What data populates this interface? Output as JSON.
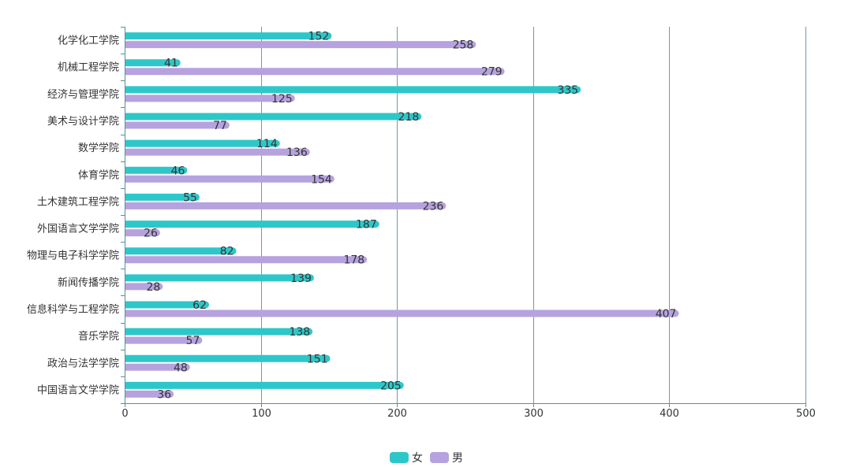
{
  "chart_data": {
    "type": "bar",
    "orientation": "horizontal",
    "categories": [
      "化学化工学院",
      "机械工程学院",
      "经济与管理学院",
      "美术与设计学院",
      "数学学院",
      "体育学院",
      "土木建筑工程学院",
      "外国语言文学学院",
      "物理与电子科学学院",
      "新闻传播学院",
      "信息科学与工程学院",
      "音乐学院",
      "政治与法学学院",
      "中国语言文学学院"
    ],
    "series": [
      {
        "name": "女",
        "values": [
          152,
          41,
          335,
          218,
          114,
          46,
          55,
          187,
          82,
          139,
          62,
          138,
          151,
          205
        ],
        "color": "#2ec7c9"
      },
      {
        "name": "男",
        "values": [
          258,
          279,
          125,
          77,
          136,
          154,
          236,
          26,
          178,
          28,
          407,
          57,
          48,
          36
        ],
        "color": "#b6a2de"
      }
    ],
    "xlim": [
      0,
      500
    ],
    "xticks": [
      0,
      100,
      200,
      300,
      400,
      500
    ],
    "grid": true,
    "data_labels": true,
    "legend_position": "bottom-center"
  }
}
